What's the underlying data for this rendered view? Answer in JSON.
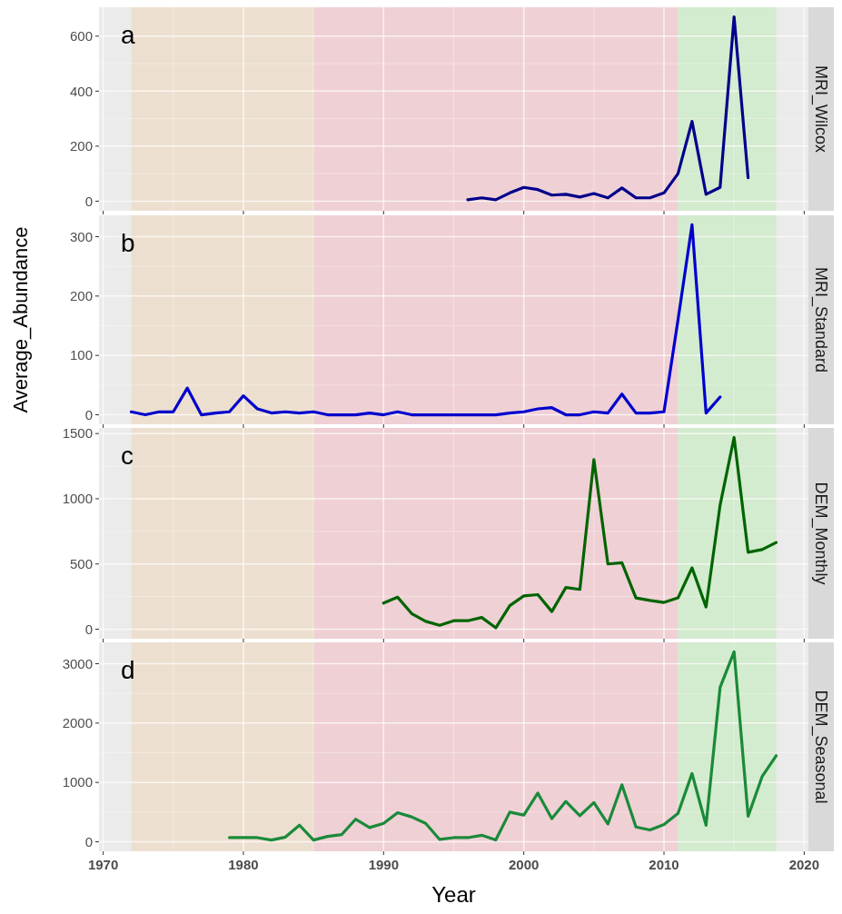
{
  "chart_data": [
    {
      "type": "line",
      "title": "MRI_Wilcox",
      "annotations": [
        "a"
      ],
      "grid": true,
      "tick_labels": "y",
      "xlim": [
        1969.7,
        2020.3
      ],
      "xticks": [
        1970,
        1980,
        1990,
        2000,
        2010,
        2020
      ],
      "ylim": [
        -35,
        705
      ],
      "yticks": [
        0,
        200,
        400,
        600
      ],
      "bands": [
        {
          "axis": "x",
          "from": 1972,
          "to": 1985,
          "color": "#eddfcf"
        },
        {
          "axis": "x",
          "from": 1985,
          "to": 2011,
          "color": "#efd0d5"
        },
        {
          "axis": "x",
          "from": 2011,
          "to": 2018,
          "color": "#d3ebce"
        }
      ],
      "series": [
        {
          "color": "#00008b",
          "x": [
            1996,
            1997,
            1998,
            1999,
            2000,
            2001,
            2002,
            2003,
            2004,
            2005,
            2006,
            2007,
            2008,
            2009,
            2010,
            2011,
            2012,
            2013,
            2014,
            2015,
            2016
          ],
          "values": [
            5,
            12,
            5,
            30,
            50,
            42,
            22,
            25,
            15,
            28,
            12,
            48,
            12,
            12,
            30,
            100,
            290,
            25,
            50,
            670,
            85
          ]
        }
      ]
    },
    {
      "type": "line",
      "title": "MRI_Standard",
      "ylabel": "Average_Abundance",
      "annotations": [
        "b"
      ],
      "grid": true,
      "tick_labels": "y",
      "xlim": [
        1969.7,
        2020.3
      ],
      "xticks": [
        1970,
        1980,
        1990,
        2000,
        2010,
        2020
      ],
      "ylim": [
        -16,
        336
      ],
      "yticks": [
        0,
        100,
        200,
        300
      ],
      "bands": [
        {
          "axis": "x",
          "from": 1972,
          "to": 1985,
          "color": "#eddfcf"
        },
        {
          "axis": "x",
          "from": 1985,
          "to": 2011,
          "color": "#efd0d5"
        },
        {
          "axis": "x",
          "from": 2011,
          "to": 2018,
          "color": "#d3ebce"
        }
      ],
      "series": [
        {
          "color": "#0000cd",
          "x": [
            1972,
            1973,
            1974,
            1975,
            1976,
            1977,
            1978,
            1979,
            1980,
            1981,
            1982,
            1983,
            1984,
            1985,
            1986,
            1987,
            1988,
            1989,
            1990,
            1991,
            1992,
            1993,
            1994,
            1995,
            1996,
            1997,
            1998,
            1999,
            2000,
            2001,
            2002,
            2003,
            2004,
            2005,
            2006,
            2007,
            2008,
            2009,
            2010,
            2011,
            2012,
            2013,
            2014
          ],
          "values": [
            5,
            0,
            5,
            5,
            45,
            0,
            3,
            5,
            32,
            10,
            3,
            5,
            3,
            5,
            0,
            0,
            0,
            3,
            0,
            5,
            0,
            0,
            0,
            0,
            0,
            0,
            0,
            3,
            5,
            10,
            12,
            0,
            0,
            5,
            3,
            35,
            3,
            3,
            5,
            160,
            320,
            3,
            30
          ]
        }
      ]
    },
    {
      "type": "line",
      "title": "DEM_Monthly",
      "annotations": [
        "c"
      ],
      "grid": true,
      "tick_labels": "y",
      "xlim": [
        1969.7,
        2020.3
      ],
      "xticks": [
        1970,
        1980,
        1990,
        2000,
        2010,
        2020
      ],
      "ylim": [
        -73,
        1543
      ],
      "yticks": [
        0,
        500,
        1000,
        1500
      ],
      "bands": [
        {
          "axis": "x",
          "from": 1972,
          "to": 1985,
          "color": "#eddfcf"
        },
        {
          "axis": "x",
          "from": 1985,
          "to": 2011,
          "color": "#efd0d5"
        },
        {
          "axis": "x",
          "from": 2011,
          "to": 2018,
          "color": "#d3ebce"
        }
      ],
      "series": [
        {
          "color": "#006400",
          "x": [
            1990,
            1991,
            1992,
            1993,
            1994,
            1995,
            1996,
            1997,
            1998,
            1999,
            2000,
            2001,
            2002,
            2003,
            2004,
            2005,
            2006,
            2007,
            2008,
            2009,
            2010,
            2011,
            2012,
            2013,
            2014,
            2015,
            2016,
            2017,
            2018
          ],
          "values": [
            200,
            245,
            120,
            60,
            30,
            65,
            65,
            90,
            10,
            180,
            255,
            265,
            135,
            320,
            305,
            1300,
            500,
            510,
            240,
            220,
            205,
            240,
            470,
            170,
            950,
            1470,
            590,
            610,
            665
          ]
        }
      ]
    },
    {
      "type": "line",
      "title": "DEM_Seasonal",
      "xlabel": "Year",
      "annotations": [
        "d"
      ],
      "grid": true,
      "xlim": [
        1969.7,
        2020.3
      ],
      "xticks": [
        1970,
        1980,
        1990,
        2000,
        2010,
        2020
      ],
      "ylim": [
        -160,
        3360
      ],
      "yticks": [
        0,
        1000,
        2000,
        3000
      ],
      "bands": [
        {
          "axis": "x",
          "from": 1972,
          "to": 1985,
          "color": "#eddfcf"
        },
        {
          "axis": "x",
          "from": 1985,
          "to": 2011,
          "color": "#efd0d5"
        },
        {
          "axis": "x",
          "from": 2011,
          "to": 2018,
          "color": "#d3ebce"
        }
      ],
      "series": [
        {
          "color": "#1a8a3a",
          "x": [
            1979,
            1980,
            1981,
            1982,
            1983,
            1984,
            1985,
            1986,
            1987,
            1988,
            1989,
            1990,
            1991,
            1992,
            1993,
            1994,
            1995,
            1996,
            1997,
            1998,
            1999,
            2000,
            2001,
            2002,
            2003,
            2004,
            2005,
            2006,
            2007,
            2008,
            2009,
            2010,
            2011,
            2012,
            2013,
            2014,
            2015,
            2016,
            2017,
            2018
          ],
          "values": [
            70,
            70,
            70,
            30,
            80,
            280,
            30,
            90,
            120,
            380,
            240,
            310,
            490,
            420,
            310,
            40,
            70,
            70,
            110,
            30,
            500,
            450,
            820,
            390,
            680,
            440,
            660,
            300,
            960,
            250,
            200,
            290,
            480,
            1150,
            280,
            2600,
            3200,
            430,
            1100,
            1450
          ]
        }
      ]
    }
  ]
}
